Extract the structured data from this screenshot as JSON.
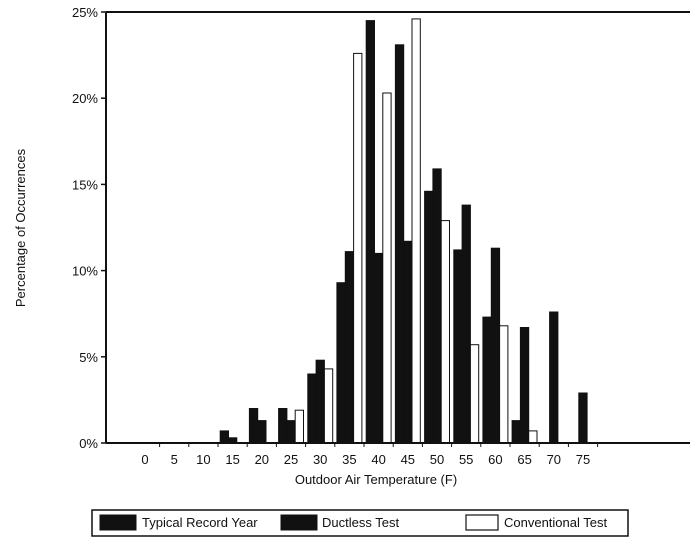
{
  "chart_data": {
    "type": "bar",
    "title": "",
    "xlabel": "Outdoor Air Temperature (F)",
    "ylabel": "Percentage of Occurrences",
    "categories": [
      "0",
      "5",
      "10",
      "15",
      "20",
      "25",
      "30",
      "35",
      "40",
      "45",
      "50",
      "55",
      "60",
      "65",
      "70",
      "75"
    ],
    "series": [
      {
        "name": "Typical Record Year",
        "color": "#111111",
        "values": [
          0,
          0,
          0,
          0.7,
          2.0,
          2.0,
          4.0,
          9.3,
          24.5,
          23.1,
          14.6,
          11.2,
          7.3,
          1.3,
          0,
          0
        ]
      },
      {
        "name": "Ductless Test",
        "color": "#111111",
        "values": [
          0,
          0,
          0,
          0.3,
          1.3,
          1.3,
          4.8,
          11.1,
          11.0,
          11.7,
          15.9,
          13.8,
          11.3,
          6.7,
          7.6,
          2.9
        ]
      },
      {
        "name": "Conventional Test",
        "color": "#ffffff",
        "values": [
          0,
          0,
          0,
          0,
          0,
          1.9,
          4.3,
          22.6,
          20.3,
          24.6,
          12.9,
          5.7,
          6.8,
          0.7,
          0,
          0
        ]
      }
    ],
    "ylim": [
      0,
      25
    ],
    "yticks": [
      "0%",
      "5%",
      "10%",
      "15%",
      "20%",
      "25%"
    ],
    "grid": false,
    "legend_position": "bottom"
  }
}
